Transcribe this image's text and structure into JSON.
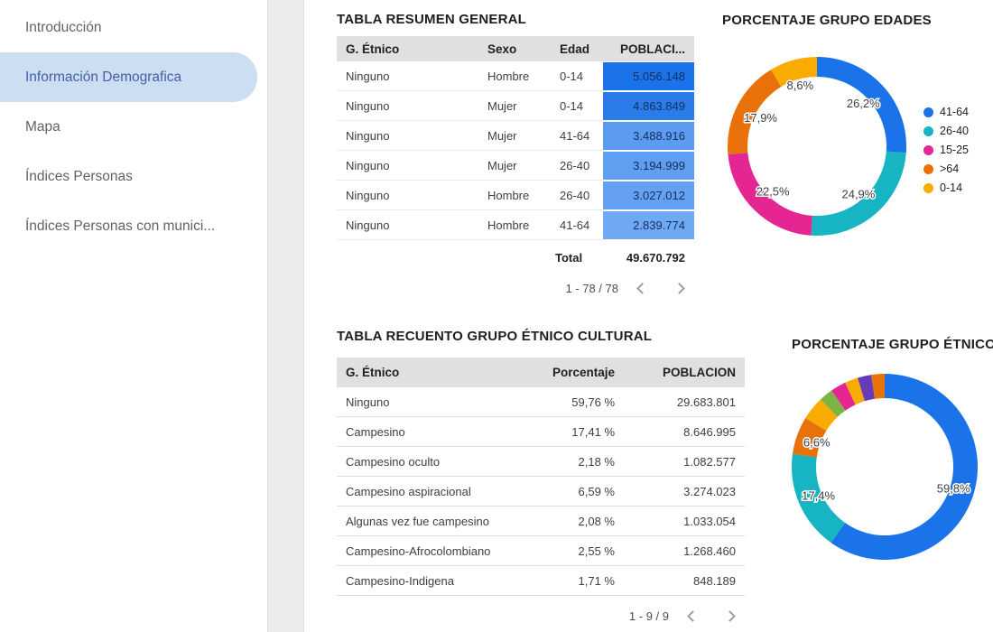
{
  "sidebar": {
    "active_bg": "#cdddf2",
    "active_text": "#4560a8",
    "items": [
      {
        "label": "Introducción",
        "active": false
      },
      {
        "label": "Información Demografica",
        "active": true
      },
      {
        "label": "Mapa",
        "active": false
      },
      {
        "label": "Índices Personas",
        "active": false
      },
      {
        "label": "Índices Personas con munici...",
        "active": false
      }
    ]
  },
  "table_resumen": {
    "title": "TABLA RESUMEN GENERAL",
    "columns": [
      "G. Étnico",
      "Sexo",
      "Edad",
      "POBLACI..."
    ],
    "rows": [
      [
        "Ninguno",
        "Hombre",
        "0-14",
        "5.056.148"
      ],
      [
        "Ninguno",
        "Mujer",
        "0-14",
        "4.863.849"
      ],
      [
        "Ninguno",
        "Mujer",
        "41-64",
        "3.488.916"
      ],
      [
        "Ninguno",
        "Mujer",
        "26-40",
        "3.194.999"
      ],
      [
        "Ninguno",
        "Hombre",
        "26-40",
        "3.027.012"
      ],
      [
        "Ninguno",
        "Hombre",
        "41-64",
        "2.839.774"
      ]
    ],
    "heatmap_colors": [
      "#1a73e8",
      "#2b7ce9",
      "#5b9bf0",
      "#5f9ef1",
      "#64a1f2",
      "#6fa8f3"
    ],
    "total_label": "Total",
    "total_value": "49.670.792",
    "pagination": "1 - 78 / 78"
  },
  "table_etnico": {
    "title": "TABLA RECUENTO GRUPO ÉTNICO CULTURAL",
    "columns": [
      "G. Étnico",
      "Porcentaje",
      "POBLACION"
    ],
    "rows": [
      [
        "Ninguno",
        "59,76 %",
        "29.683.801"
      ],
      [
        "Campesino",
        "17,41 %",
        "8.646.995"
      ],
      [
        "Campesino oculto",
        "2,18 %",
        "1.082.577"
      ],
      [
        "Campesino aspiracional",
        "6,59 %",
        "3.274.023"
      ],
      [
        "Algunas vez fue campesino",
        "2,08 %",
        "1.033.054"
      ],
      [
        "Campesino-Afrocolombiano",
        "2,55 %",
        "1.268.460"
      ],
      [
        "Campesino-Indigena",
        "1,71 %",
        "848.189"
      ]
    ],
    "pagination": "1 - 9 / 9"
  },
  "chart_data": [
    {
      "type": "pie",
      "donut": true,
      "title": "PORCENTAJE GRUPO EDADES",
      "labels": [
        "41-64",
        "26-40",
        "15-25",
        ">64",
        "0-14"
      ],
      "values": [
        26.2,
        24.9,
        22.5,
        17.9,
        8.6
      ],
      "slice_labels": [
        "26,2%",
        "24,9%",
        "22,5%",
        "17,9%",
        "8,6%"
      ],
      "colors": [
        "#1a73e8",
        "#17b4c4",
        "#e52592",
        "#e8710a",
        "#f9ab00"
      ],
      "legend_position": "right"
    },
    {
      "type": "pie",
      "donut": true,
      "title": "PORCENTAJE GRUPO ÉTNICO",
      "labels": [],
      "values": [
        59.8,
        17.4,
        6.6,
        4.1,
        2.4,
        2.7,
        2.3,
        2.4,
        2.3
      ],
      "slice_labels": [
        "59,8%",
        "17,4%",
        "6,6%",
        null,
        null,
        null,
        null,
        null,
        null
      ],
      "colors": [
        "#1a73e8",
        "#17b4c4",
        "#e8710a",
        "#f9ab00",
        "#7cb342",
        "#e52592",
        "#f9ab00",
        "#673ab7",
        "#e8710a"
      ],
      "legend_position": "none"
    }
  ]
}
